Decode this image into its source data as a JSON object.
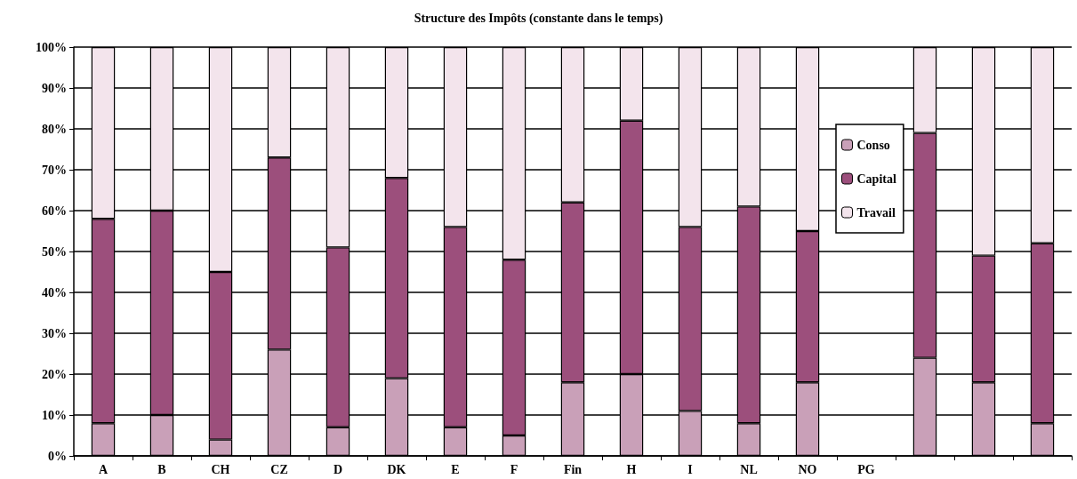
{
  "chart_data": {
    "type": "bar",
    "title": "Structure des Impôts (constante dans le temps)",
    "categories": [
      "A",
      "B",
      "CH",
      "CZ",
      "D",
      "DK",
      "E",
      "F",
      "Fin",
      "H",
      "I",
      "NL",
      "NO",
      "PG",
      null,
      null,
      null
    ],
    "stacked": true,
    "series": [
      {
        "name": "Conso",
        "color": "#c9a0b8",
        "values": [
          8,
          10,
          4,
          26,
          7,
          19,
          7,
          5,
          18,
          20,
          11,
          8,
          18,
          null,
          24,
          18,
          8
        ]
      },
      {
        "name": "Capital",
        "color": "#9c4f7c",
        "values": [
          50,
          50,
          41,
          47,
          44,
          49,
          49,
          43,
          44,
          62,
          45,
          53,
          37,
          null,
          55,
          31,
          44
        ]
      },
      {
        "name": "Travail",
        "color": "#f3e4ec",
        "values": [
          42,
          40,
          55,
          27,
          49,
          32,
          44,
          52,
          38,
          18,
          44,
          39,
          45,
          null,
          21,
          51,
          48
        ]
      }
    ],
    "ylim": [
      0,
      100
    ],
    "yticks": [
      {
        "value": 0,
        "label": "0%"
      },
      {
        "value": 10,
        "label": "10%"
      },
      {
        "value": 20,
        "label": "20%"
      },
      {
        "value": 30,
        "label": "30%"
      },
      {
        "value": 40,
        "label": "40%"
      },
      {
        "value": 50,
        "label": "50%"
      },
      {
        "value": 60,
        "label": "60%"
      },
      {
        "value": 70,
        "label": "70%"
      },
      {
        "value": 80,
        "label": "80%"
      },
      {
        "value": 90,
        "label": "90%"
      },
      {
        "value": 100,
        "label": "100%"
      }
    ],
    "grid": "y",
    "legend": "right"
  }
}
